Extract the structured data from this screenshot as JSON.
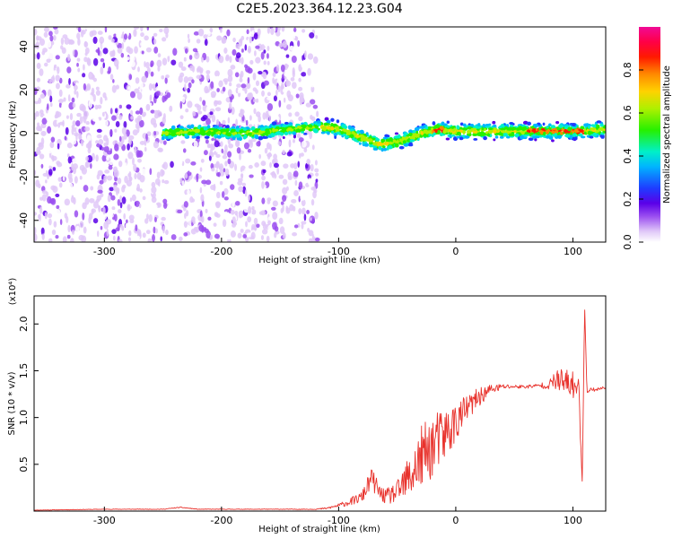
{
  "figure": {
    "title": "C2E5.2023.364.12.23.G04"
  },
  "chart_data": [
    {
      "type": "heatmap",
      "xlabel": "Height of straight line (km)",
      "ylabel": "Frequency (Hz)",
      "xlim": [
        -360,
        128
      ],
      "ylim": [
        -50,
        49
      ],
      "xticks": [
        -300,
        -200,
        -100,
        0,
        100
      ],
      "yticks": [
        -40,
        -20,
        0,
        20,
        40
      ],
      "colorbar": {
        "label": "Normalized spectral amplitude",
        "range": [
          0.0,
          1.0
        ],
        "ticks": [
          0.0,
          0.2,
          0.4,
          0.6,
          0.8
        ],
        "tick_labels": [
          "0.0",
          "0.2",
          "0.4",
          "0.6",
          "0.8"
        ],
        "colormap": "rainbow (white, violet, blue, cyan, green, yellow, orange, red, magenta)"
      },
      "description_values": {
        "noise_region_x": [
          -360,
          -118
        ],
        "signal_band_center_frequency_hz": [
          [
            -250,
            0
          ],
          [
            -220,
            1
          ],
          [
            -180,
            0
          ],
          [
            -140,
            2
          ],
          [
            -115,
            3
          ],
          [
            -100,
            2
          ],
          [
            -80,
            -2
          ],
          [
            -65,
            -5
          ],
          [
            -50,
            -4
          ],
          [
            -30,
            0
          ],
          [
            -15,
            2
          ],
          [
            0,
            1
          ],
          [
            40,
            1
          ],
          [
            80,
            1
          ],
          [
            110,
            1
          ],
          [
            128,
            2
          ]
        ],
        "peak_amplitude_regions_x": [
          [
            -20,
            -10
          ],
          [
            60,
            110
          ]
        ]
      }
    },
    {
      "type": "line",
      "xlabel": "Height of straight line (km)",
      "ylabel": "SNR (10 * v/v)",
      "scale_label": "(x10⁴)",
      "xlim": [
        -360,
        128
      ],
      "ylim": [
        0,
        2.3
      ],
      "xticks": [
        -300,
        -200,
        -100,
        0,
        100
      ],
      "yticks": [
        0.5,
        1.0,
        1.5,
        2.0
      ],
      "ytick_labels": [
        "0.5",
        "1.0",
        "1.5",
        "2.0"
      ],
      "series": [
        {
          "color": "#e8322c",
          "x": [
            -360,
            -300,
            -250,
            -235,
            -220,
            -200,
            -150,
            -120,
            -110,
            -100,
            -90,
            -80,
            -72,
            -65,
            -60,
            -50,
            -40,
            -30,
            -20,
            -10,
            0,
            10,
            20,
            30,
            40,
            50,
            60,
            70,
            80,
            85,
            90,
            95,
            100,
            105,
            108,
            110,
            112,
            115,
            120,
            128
          ],
          "y": [
            0.01,
            0.02,
            0.02,
            0.04,
            0.02,
            0.02,
            0.02,
            0.02,
            0.03,
            0.06,
            0.1,
            0.15,
            0.35,
            0.2,
            0.15,
            0.2,
            0.35,
            0.55,
            0.7,
            0.8,
            0.95,
            1.1,
            1.22,
            1.3,
            1.33,
            1.33,
            1.33,
            1.34,
            1.35,
            1.4,
            1.38,
            1.36,
            1.35,
            1.3,
            0.3,
            2.2,
            1.28,
            1.3,
            1.3,
            1.32
          ],
          "noise_amplitude": [
            0.002,
            0.003,
            0.003,
            0.005,
            0.003,
            0.003,
            0.003,
            0.004,
            0.01,
            0.02,
            0.04,
            0.06,
            0.12,
            0.08,
            0.08,
            0.12,
            0.25,
            0.35,
            0.35,
            0.3,
            0.22,
            0.15,
            0.1,
            0.06,
            0.03,
            0.02,
            0.02,
            0.02,
            0.05,
            0.1,
            0.15,
            0.15,
            0.15,
            0.15,
            0.0,
            0.0,
            0.02,
            0.02,
            0.02,
            0.02
          ]
        }
      ]
    }
  ]
}
